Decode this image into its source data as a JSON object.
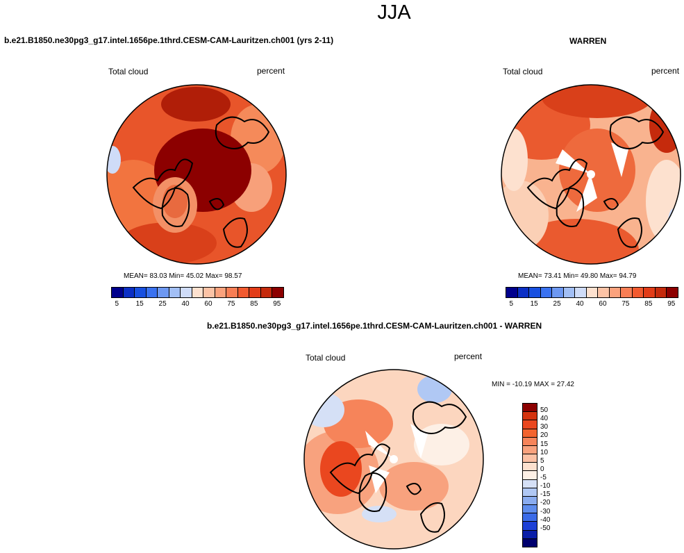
{
  "page": {
    "title": "JJA"
  },
  "panels": [
    {
      "case_title": "b.e21.B1850.ne30pg3_g17.intel.1656pe.1thrd.CESM-CAM-Lauritzen.ch001 (yrs 2-11)",
      "variable": "Total cloud",
      "units": "percent",
      "stats": "MEAN=  83.03  Min=  45.02  Max=  98.57"
    },
    {
      "case_title": "WARREN",
      "variable": "Total cloud",
      "units": "percent",
      "stats": "MEAN=  73.41  Min=  49.80  Max=  94.79"
    },
    {
      "case_title": "b.e21.B1850.ne30pg3_g17.intel.1656pe.1thrd.CESM-CAM-Lauritzen.ch001 - WARREN",
      "variable": "Total cloud",
      "units": "percent",
      "stats": "MIN = -10.19 MAX =  27.42"
    }
  ],
  "colorbar_abs": {
    "labels": [
      "5",
      "15",
      "25",
      "40",
      "60",
      "75",
      "85",
      "95"
    ],
    "colors": [
      "#00008c",
      "#0b2fc5",
      "#1850e0",
      "#3a72f0",
      "#6d98f2",
      "#a2bff5",
      "#cfdcf8",
      "#fde1cf",
      "#fcc3a6",
      "#fba27d",
      "#f87e55",
      "#f25a2f",
      "#e23c18",
      "#c52a0c",
      "#8c0000"
    ]
  },
  "colorbar_diff": {
    "labels": [
      "50",
      "40",
      "30",
      "20",
      "15",
      "10",
      "5",
      "0",
      "-5",
      "-10",
      "-15",
      "-20",
      "-30",
      "-40",
      "-50"
    ],
    "colors": [
      "#8c0000",
      "#d4330f",
      "#ea471f",
      "#f3642f",
      "#f6845a",
      "#f8a27e",
      "#fbc1a5",
      "#fde1cf",
      "#fdf0e6",
      "#d5e0f6",
      "#b0c8f4",
      "#8aacef",
      "#5f8ded",
      "#3b6be8",
      "#1d40d6",
      "#0a1ea8",
      "#00006e"
    ]
  },
  "maps": [
    {
      "fields": "model"
    },
    {
      "fields": "obs"
    },
    {
      "fields": "diff"
    }
  ]
}
